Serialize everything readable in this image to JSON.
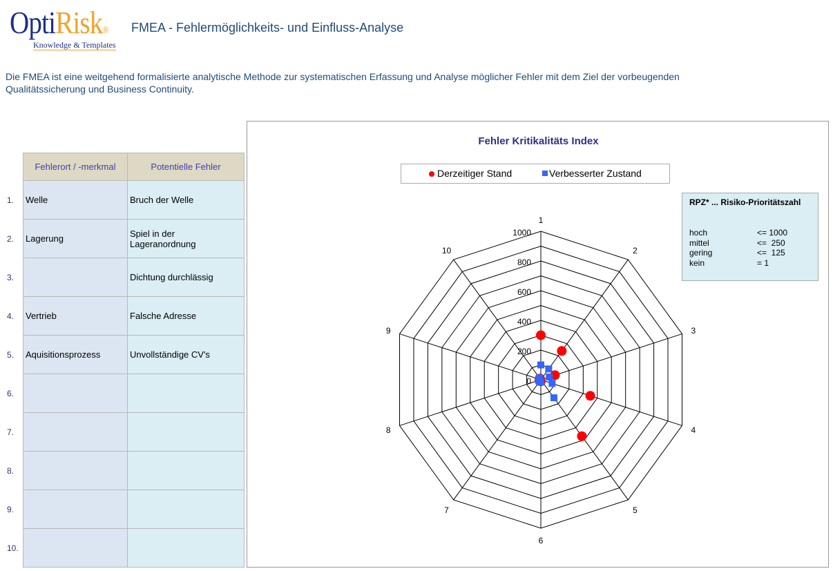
{
  "header": {
    "logo_main": "Opti",
    "logo_accent": "Risk",
    "logo_reg": "®",
    "logo_sub": "Knowledge & Templates",
    "title": "FMEA - Fehlermöglichkeits- und Einfluss-Analyse"
  },
  "description": "Die FMEA ist eine weitgehend formalisierte analytische Methode zur systematischen Erfassung und Analyse möglicher Fehler mit dem Ziel der vorbeugenden Qualitätssicherung und Business Continuity.",
  "table": {
    "headers": [
      "Fehlerort / -merkmal",
      "Potentielle Fehler"
    ],
    "rows": [
      {
        "n": "1.",
        "a": "Welle",
        "b": "Bruch der Welle"
      },
      {
        "n": "2.",
        "a": "Lagerung",
        "b": "Spiel in der Lageranordnung"
      },
      {
        "n": "3.",
        "a": "",
        "b": "Dichtung durchlässig"
      },
      {
        "n": "4.",
        "a": "Vertrieb",
        "b": "Falsche Adresse"
      },
      {
        "n": "5.",
        "a": "Aquisitionsprozess",
        "b": "Unvollständige CV's"
      },
      {
        "n": "6.",
        "a": "",
        "b": ""
      },
      {
        "n": "7.",
        "a": "",
        "b": ""
      },
      {
        "n": "8.",
        "a": "",
        "b": ""
      },
      {
        "n": "9.",
        "a": "",
        "b": ""
      },
      {
        "n": "10.",
        "a": "",
        "b": ""
      }
    ]
  },
  "rpz": {
    "title": "RPZ* ... Risiko-Prioritätszahl",
    "rows": [
      [
        "hoch",
        "<= 1000"
      ],
      [
        "mittel",
        "<=  250"
      ],
      [
        "gering",
        "<=  125"
      ],
      [
        "kein",
        "= 1"
      ]
    ]
  },
  "chart_data": {
    "type": "radar",
    "title": "Fehler Kritikalitäts Index",
    "categories": [
      "1",
      "2",
      "3",
      "4",
      "5",
      "6",
      "7",
      "8",
      "9",
      "10"
    ],
    "rlim": [
      0,
      1000
    ],
    "ticks": [
      0,
      200,
      400,
      600,
      800,
      1000
    ],
    "grid_step": 100,
    "series": [
      {
        "name": "Derzeitiger Stand",
        "color": "#ff0000",
        "marker": "circle",
        "values": [
          300,
          240,
          100,
          350,
          470,
          10,
          10,
          10,
          10,
          10
        ]
      },
      {
        "name": "Verbesserter Zustand",
        "color": "#3366ff",
        "marker": "square",
        "values": [
          100,
          90,
          60,
          80,
          150,
          15,
          15,
          15,
          15,
          15
        ]
      }
    ]
  }
}
